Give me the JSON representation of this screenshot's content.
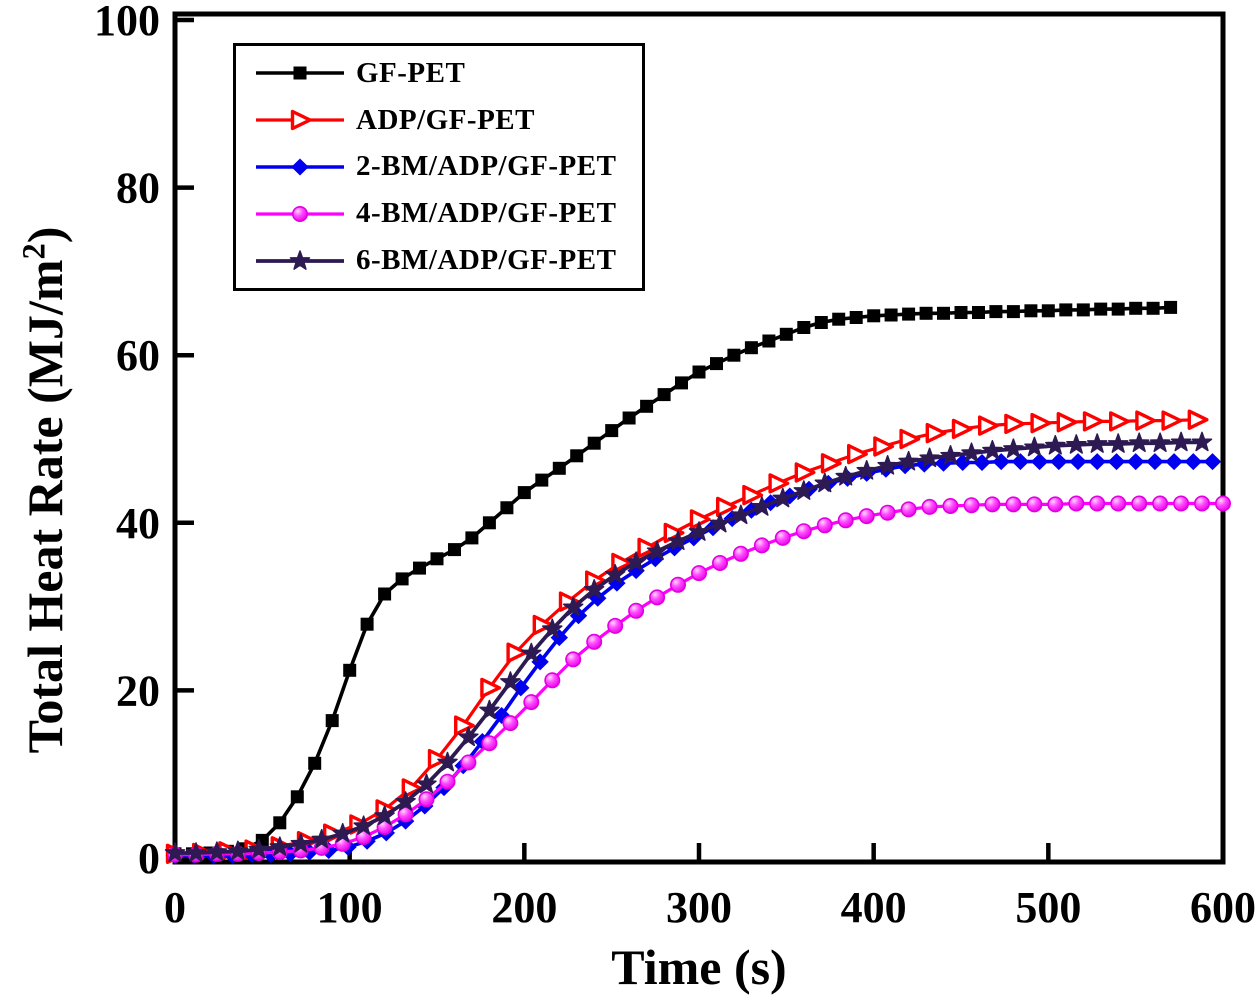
{
  "figure": {
    "xlabel": "Time (s)",
    "ylabel": {
      "prefix": "Total Heat Rate (MJ/m",
      "sup": "2",
      "suffix": ")"
    }
  },
  "chart_data": {
    "type": "line",
    "title": "",
    "xlabel": "Time (s)",
    "ylabel": "Total Heat Rate (MJ/m^2)",
    "xlim": [
      0,
      600
    ],
    "ylim": [
      0,
      100
    ],
    "xticks": [
      0,
      100,
      200,
      300,
      400,
      500,
      600
    ],
    "yticks": [
      0,
      20,
      40,
      60,
      80,
      100
    ],
    "grid": false,
    "legend_position": "upper-left",
    "series": [
      {
        "name": "GF-PET",
        "color": "#000000",
        "marker": "square",
        "points": [
          [
            0,
            0.5
          ],
          [
            10,
            0.5
          ],
          [
            20,
            0.6
          ],
          [
            30,
            0.8
          ],
          [
            40,
            1.1
          ],
          [
            50,
            2.1
          ],
          [
            60,
            4.2
          ],
          [
            70,
            7.3
          ],
          [
            80,
            11.3
          ],
          [
            90,
            16.4
          ],
          [
            100,
            22.4
          ],
          [
            110,
            27.9
          ],
          [
            120,
            31.5
          ],
          [
            130,
            33.3
          ],
          [
            140,
            34.6
          ],
          [
            150,
            35.7
          ],
          [
            160,
            36.8
          ],
          [
            170,
            38.2
          ],
          [
            180,
            40.0
          ],
          [
            190,
            41.8
          ],
          [
            200,
            43.6
          ],
          [
            210,
            45.1
          ],
          [
            220,
            46.5
          ],
          [
            230,
            48.0
          ],
          [
            240,
            49.5
          ],
          [
            250,
            51.0
          ],
          [
            260,
            52.5
          ],
          [
            270,
            53.9
          ],
          [
            280,
            55.3
          ],
          [
            290,
            56.7
          ],
          [
            300,
            58.0
          ],
          [
            310,
            59.0
          ],
          [
            320,
            60.0
          ],
          [
            330,
            60.9
          ],
          [
            340,
            61.7
          ],
          [
            350,
            62.5
          ],
          [
            360,
            63.3
          ],
          [
            370,
            63.9
          ],
          [
            380,
            64.3
          ],
          [
            390,
            64.5
          ],
          [
            400,
            64.7
          ],
          [
            410,
            64.8
          ],
          [
            420,
            64.9
          ],
          [
            430,
            65.0
          ],
          [
            440,
            65.0
          ],
          [
            450,
            65.1
          ],
          [
            460,
            65.1
          ],
          [
            470,
            65.2
          ],
          [
            480,
            65.2
          ],
          [
            490,
            65.3
          ],
          [
            500,
            65.3
          ],
          [
            510,
            65.4
          ],
          [
            520,
            65.4
          ],
          [
            530,
            65.5
          ],
          [
            540,
            65.5
          ],
          [
            550,
            65.6
          ],
          [
            560,
            65.6
          ],
          [
            570,
            65.7
          ]
        ]
      },
      {
        "name": "ADP/GF-PET",
        "color": "#FF0000",
        "marker": "triangle-right-open",
        "points": [
          [
            0,
            0.5
          ],
          [
            15,
            0.6
          ],
          [
            30,
            0.8
          ],
          [
            45,
            1.0
          ],
          [
            60,
            1.4
          ],
          [
            75,
            2.0
          ],
          [
            90,
            2.9
          ],
          [
            105,
            4.0
          ],
          [
            120,
            5.8
          ],
          [
            135,
            8.3
          ],
          [
            150,
            11.8
          ],
          [
            165,
            15.8
          ],
          [
            180,
            20.3
          ],
          [
            195,
            24.5
          ],
          [
            210,
            27.8
          ],
          [
            225,
            30.6
          ],
          [
            240,
            33.1
          ],
          [
            255,
            35.2
          ],
          [
            270,
            37.0
          ],
          [
            285,
            38.8
          ],
          [
            300,
            40.4
          ],
          [
            315,
            41.9
          ],
          [
            330,
            43.3
          ],
          [
            345,
            44.7
          ],
          [
            360,
            46.0
          ],
          [
            375,
            47.1
          ],
          [
            390,
            48.2
          ],
          [
            405,
            49.1
          ],
          [
            420,
            50.0
          ],
          [
            435,
            50.7
          ],
          [
            450,
            51.2
          ],
          [
            465,
            51.6
          ],
          [
            480,
            51.8
          ],
          [
            495,
            51.9
          ],
          [
            510,
            52.0
          ],
          [
            525,
            52.1
          ],
          [
            540,
            52.1
          ],
          [
            555,
            52.2
          ],
          [
            570,
            52.2
          ],
          [
            585,
            52.3
          ]
        ]
      },
      {
        "name": "2-BM/ADP/GF-PET",
        "color": "#0000EE",
        "marker": "diamond",
        "points": [
          [
            0,
            0.3
          ],
          [
            11,
            0.3
          ],
          [
            22,
            0.3
          ],
          [
            33,
            0.3
          ],
          [
            44,
            0.4
          ],
          [
            55,
            0.4
          ],
          [
            66,
            0.5
          ],
          [
            77,
            0.7
          ],
          [
            88,
            0.9
          ],
          [
            99,
            1.3
          ],
          [
            110,
            2.0
          ],
          [
            121,
            3.0
          ],
          [
            132,
            4.4
          ],
          [
            143,
            6.2
          ],
          [
            154,
            8.4
          ],
          [
            165,
            11.0
          ],
          [
            176,
            13.9
          ],
          [
            187,
            17.0
          ],
          [
            198,
            20.3
          ],
          [
            209,
            23.4
          ],
          [
            220,
            26.3
          ],
          [
            231,
            28.9
          ],
          [
            242,
            31.0
          ],
          [
            253,
            32.8
          ],
          [
            264,
            34.3
          ],
          [
            275,
            35.7
          ],
          [
            286,
            37.0
          ],
          [
            297,
            38.2
          ],
          [
            308,
            39.4
          ],
          [
            319,
            40.5
          ],
          [
            330,
            41.5
          ],
          [
            341,
            42.4
          ],
          [
            352,
            43.2
          ],
          [
            363,
            44.0
          ],
          [
            374,
            44.7
          ],
          [
            385,
            45.3
          ],
          [
            396,
            45.9
          ],
          [
            407,
            46.4
          ],
          [
            418,
            46.8
          ],
          [
            429,
            47.0
          ],
          [
            440,
            47.1
          ],
          [
            451,
            47.2
          ],
          [
            462,
            47.2
          ],
          [
            473,
            47.3
          ],
          [
            484,
            47.3
          ],
          [
            495,
            47.3
          ],
          [
            506,
            47.3
          ],
          [
            517,
            47.3
          ],
          [
            528,
            47.3
          ],
          [
            539,
            47.3
          ],
          [
            550,
            47.3
          ],
          [
            561,
            47.3
          ],
          [
            572,
            47.3
          ],
          [
            583,
            47.3
          ],
          [
            594,
            47.3
          ]
        ]
      },
      {
        "name": "4-BM/ADP/GF-PET",
        "color": "#FF00FF",
        "marker": "circle-ball",
        "points": [
          [
            0,
            0.4
          ],
          [
            12,
            0.4
          ],
          [
            24,
            0.5
          ],
          [
            36,
            0.5
          ],
          [
            48,
            0.6
          ],
          [
            60,
            0.7
          ],
          [
            72,
            0.9
          ],
          [
            84,
            1.2
          ],
          [
            96,
            1.7
          ],
          [
            108,
            2.5
          ],
          [
            120,
            3.7
          ],
          [
            132,
            5.2
          ],
          [
            144,
            7.0
          ],
          [
            156,
            9.1
          ],
          [
            168,
            11.4
          ],
          [
            180,
            13.7
          ],
          [
            192,
            16.1
          ],
          [
            204,
            18.6
          ],
          [
            216,
            21.2
          ],
          [
            228,
            23.7
          ],
          [
            240,
            25.8
          ],
          [
            252,
            27.7
          ],
          [
            264,
            29.5
          ],
          [
            276,
            31.1
          ],
          [
            288,
            32.6
          ],
          [
            300,
            34.0
          ],
          [
            312,
            35.2
          ],
          [
            324,
            36.3
          ],
          [
            336,
            37.3
          ],
          [
            348,
            38.2
          ],
          [
            360,
            39.0
          ],
          [
            372,
            39.7
          ],
          [
            384,
            40.3
          ],
          [
            396,
            40.8
          ],
          [
            408,
            41.2
          ],
          [
            420,
            41.6
          ],
          [
            432,
            41.9
          ],
          [
            444,
            42.0
          ],
          [
            456,
            42.1
          ],
          [
            468,
            42.2
          ],
          [
            480,
            42.2
          ],
          [
            492,
            42.2
          ],
          [
            504,
            42.2
          ],
          [
            516,
            42.3
          ],
          [
            528,
            42.3
          ],
          [
            540,
            42.3
          ],
          [
            552,
            42.3
          ],
          [
            564,
            42.3
          ],
          [
            576,
            42.3
          ],
          [
            588,
            42.3
          ],
          [
            600,
            42.3
          ]
        ]
      },
      {
        "name": "6-BM/ADP/GF-PET",
        "color": "#2E1A52",
        "marker": "star",
        "points": [
          [
            0,
            0.6
          ],
          [
            12,
            0.6
          ],
          [
            24,
            0.7
          ],
          [
            36,
            0.8
          ],
          [
            48,
            1.0
          ],
          [
            60,
            1.3
          ],
          [
            72,
            1.7
          ],
          [
            84,
            2.2
          ],
          [
            96,
            2.9
          ],
          [
            108,
            3.8
          ],
          [
            120,
            5.0
          ],
          [
            132,
            6.7
          ],
          [
            144,
            8.8
          ],
          [
            156,
            11.4
          ],
          [
            168,
            14.4
          ],
          [
            180,
            17.6
          ],
          [
            192,
            21.0
          ],
          [
            204,
            24.4
          ],
          [
            216,
            27.3
          ],
          [
            228,
            29.9
          ],
          [
            240,
            32.0
          ],
          [
            252,
            33.8
          ],
          [
            264,
            35.3
          ],
          [
            276,
            36.6
          ],
          [
            288,
            37.8
          ],
          [
            300,
            38.9
          ],
          [
            312,
            39.9
          ],
          [
            324,
            40.9
          ],
          [
            336,
            41.9
          ],
          [
            348,
            42.9
          ],
          [
            360,
            43.8
          ],
          [
            372,
            44.7
          ],
          [
            384,
            45.5
          ],
          [
            396,
            46.2
          ],
          [
            408,
            46.8
          ],
          [
            420,
            47.3
          ],
          [
            432,
            47.7
          ],
          [
            444,
            48.0
          ],
          [
            456,
            48.3
          ],
          [
            468,
            48.6
          ],
          [
            480,
            48.8
          ],
          [
            492,
            49.0
          ],
          [
            504,
            49.2
          ],
          [
            516,
            49.3
          ],
          [
            528,
            49.4
          ],
          [
            540,
            49.4
          ],
          [
            552,
            49.5
          ],
          [
            564,
            49.5
          ],
          [
            576,
            49.6
          ],
          [
            588,
            49.6
          ]
        ]
      }
    ]
  }
}
